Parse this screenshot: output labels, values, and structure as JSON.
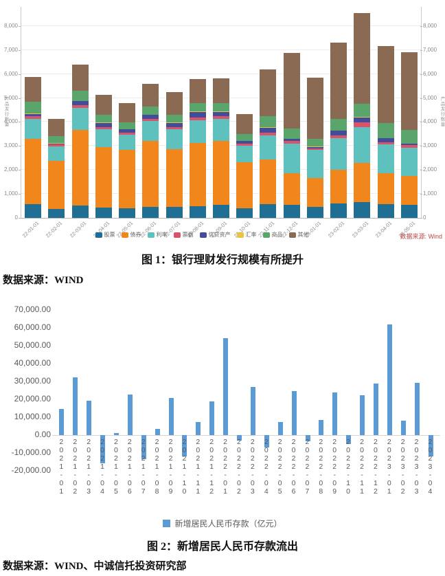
{
  "page": {
    "caption1": "图 1：银行理财发行规模有所提升",
    "source1": "数据来源：WIND",
    "caption2": "图 2：新增居民人民币存款流出",
    "source2": "数据来源：WIND、中诚信托投资研究部"
  },
  "figure1": {
    "source_note": "数据来源: Wind",
    "source_note_color": "#b94744",
    "axis_text_color": "#8a8a8a"
  },
  "chart_data": [
    {
      "type": "bar",
      "stacked": true,
      "title": "银行理财发行规模有所提升",
      "ylabel": "产品发行数量",
      "grid": true,
      "legend_position": "bottom",
      "ylim": [
        0,
        8800
      ],
      "yticks": [
        0,
        1000,
        2000,
        3000,
        4000,
        5000,
        6000,
        7000,
        8000
      ],
      "categories": [
        "22-01-01",
        "22-02-01",
        "22-03-01",
        "22-04-01",
        "22-05-01",
        "22-06-01",
        "22-07-01",
        "22-08-01",
        "22-09-01",
        "22-10-01",
        "22-11-01",
        "22-12-01",
        "23-01-01",
        "23-02-01",
        "23-03-01",
        "23-04-01",
        "23-05-01"
      ],
      "series": [
        {
          "name": "股票",
          "color": "#1f6e93",
          "values": [
            560,
            370,
            520,
            430,
            390,
            470,
            450,
            490,
            540,
            400,
            560,
            550,
            460,
            600,
            660,
            560,
            540
          ]
        },
        {
          "name": "债券",
          "color": "#f1861d",
          "values": [
            2730,
            2010,
            3160,
            2520,
            2440,
            2750,
            2430,
            2640,
            2670,
            1920,
            1890,
            1300,
            1190,
            1400,
            1640,
            1300,
            1220
          ]
        },
        {
          "name": "利率",
          "color": "#5ec1bd",
          "values": [
            850,
            600,
            900,
            750,
            650,
            810,
            820,
            930,
            920,
            700,
            990,
            1250,
            1180,
            1330,
            1490,
            1200,
            1170
          ]
        },
        {
          "name": "票据",
          "color": "#d9546a",
          "values": [
            90,
            80,
            120,
            90,
            80,
            110,
            90,
            120,
            100,
            80,
            110,
            100,
            70,
            120,
            190,
            90,
            100
          ]
        },
        {
          "name": "信贷资产",
          "color": "#414d9b",
          "values": [
            100,
            50,
            160,
            170,
            140,
            150,
            170,
            240,
            190,
            100,
            210,
            100,
            60,
            190,
            220,
            180,
            60
          ]
        },
        {
          "name": "汇率",
          "color": "#e7c442",
          "values": [
            30,
            20,
            20,
            20,
            10,
            20,
            20,
            20,
            20,
            10,
            20,
            10,
            10,
            10,
            10,
            10,
            10
          ]
        },
        {
          "name": "商品",
          "color": "#5aa56b",
          "values": [
            480,
            280,
            420,
            330,
            290,
            340,
            330,
            340,
            360,
            290,
            460,
            410,
            330,
            470,
            540,
            620,
            570
          ]
        },
        {
          "name": "其他",
          "color": "#8a6a52",
          "values": [
            1040,
            710,
            1080,
            820,
            790,
            940,
            940,
            1020,
            1020,
            820,
            1950,
            3150,
            2540,
            3190,
            3800,
            3200,
            3240
          ]
        }
      ]
    },
    {
      "type": "bar",
      "title": "新增居民人民币存款流出",
      "legend_label": "新增居民人民币存款（亿元）",
      "bar_color": "#5b9bd5",
      "grid": false,
      "legend_position": "bottom",
      "ylim": [
        -20000,
        70000
      ],
      "yticks": [
        70000,
        60000,
        50000,
        40000,
        30000,
        20000,
        10000,
        0,
        -10000,
        -20000
      ],
      "categories": [
        "2021-01",
        "2021-02",
        "2021-03",
        "2021-04",
        "2021-05",
        "2021-06",
        "2021-07",
        "2021-08",
        "2021-09",
        "2021-10",
        "2021-11",
        "2021-12",
        "2022-01",
        "2022-02",
        "2022-03",
        "2022-04",
        "2022-05",
        "2022-06",
        "2022-07",
        "2022-08",
        "2022-09",
        "2022-10",
        "2022-11",
        "2022-12",
        "2023-01",
        "2023-02",
        "2023-03",
        "2023-04"
      ],
      "values": [
        14800,
        32500,
        19200,
        -15700,
        1072,
        22700,
        -13600,
        3300,
        20700,
        -12100,
        7300,
        18900,
        54100,
        -2923,
        27000,
        -7032,
        7393,
        24700,
        -3380,
        8286,
        23900,
        -5103,
        22500,
        28900,
        62000,
        7926,
        29100,
        -12000
      ]
    }
  ]
}
